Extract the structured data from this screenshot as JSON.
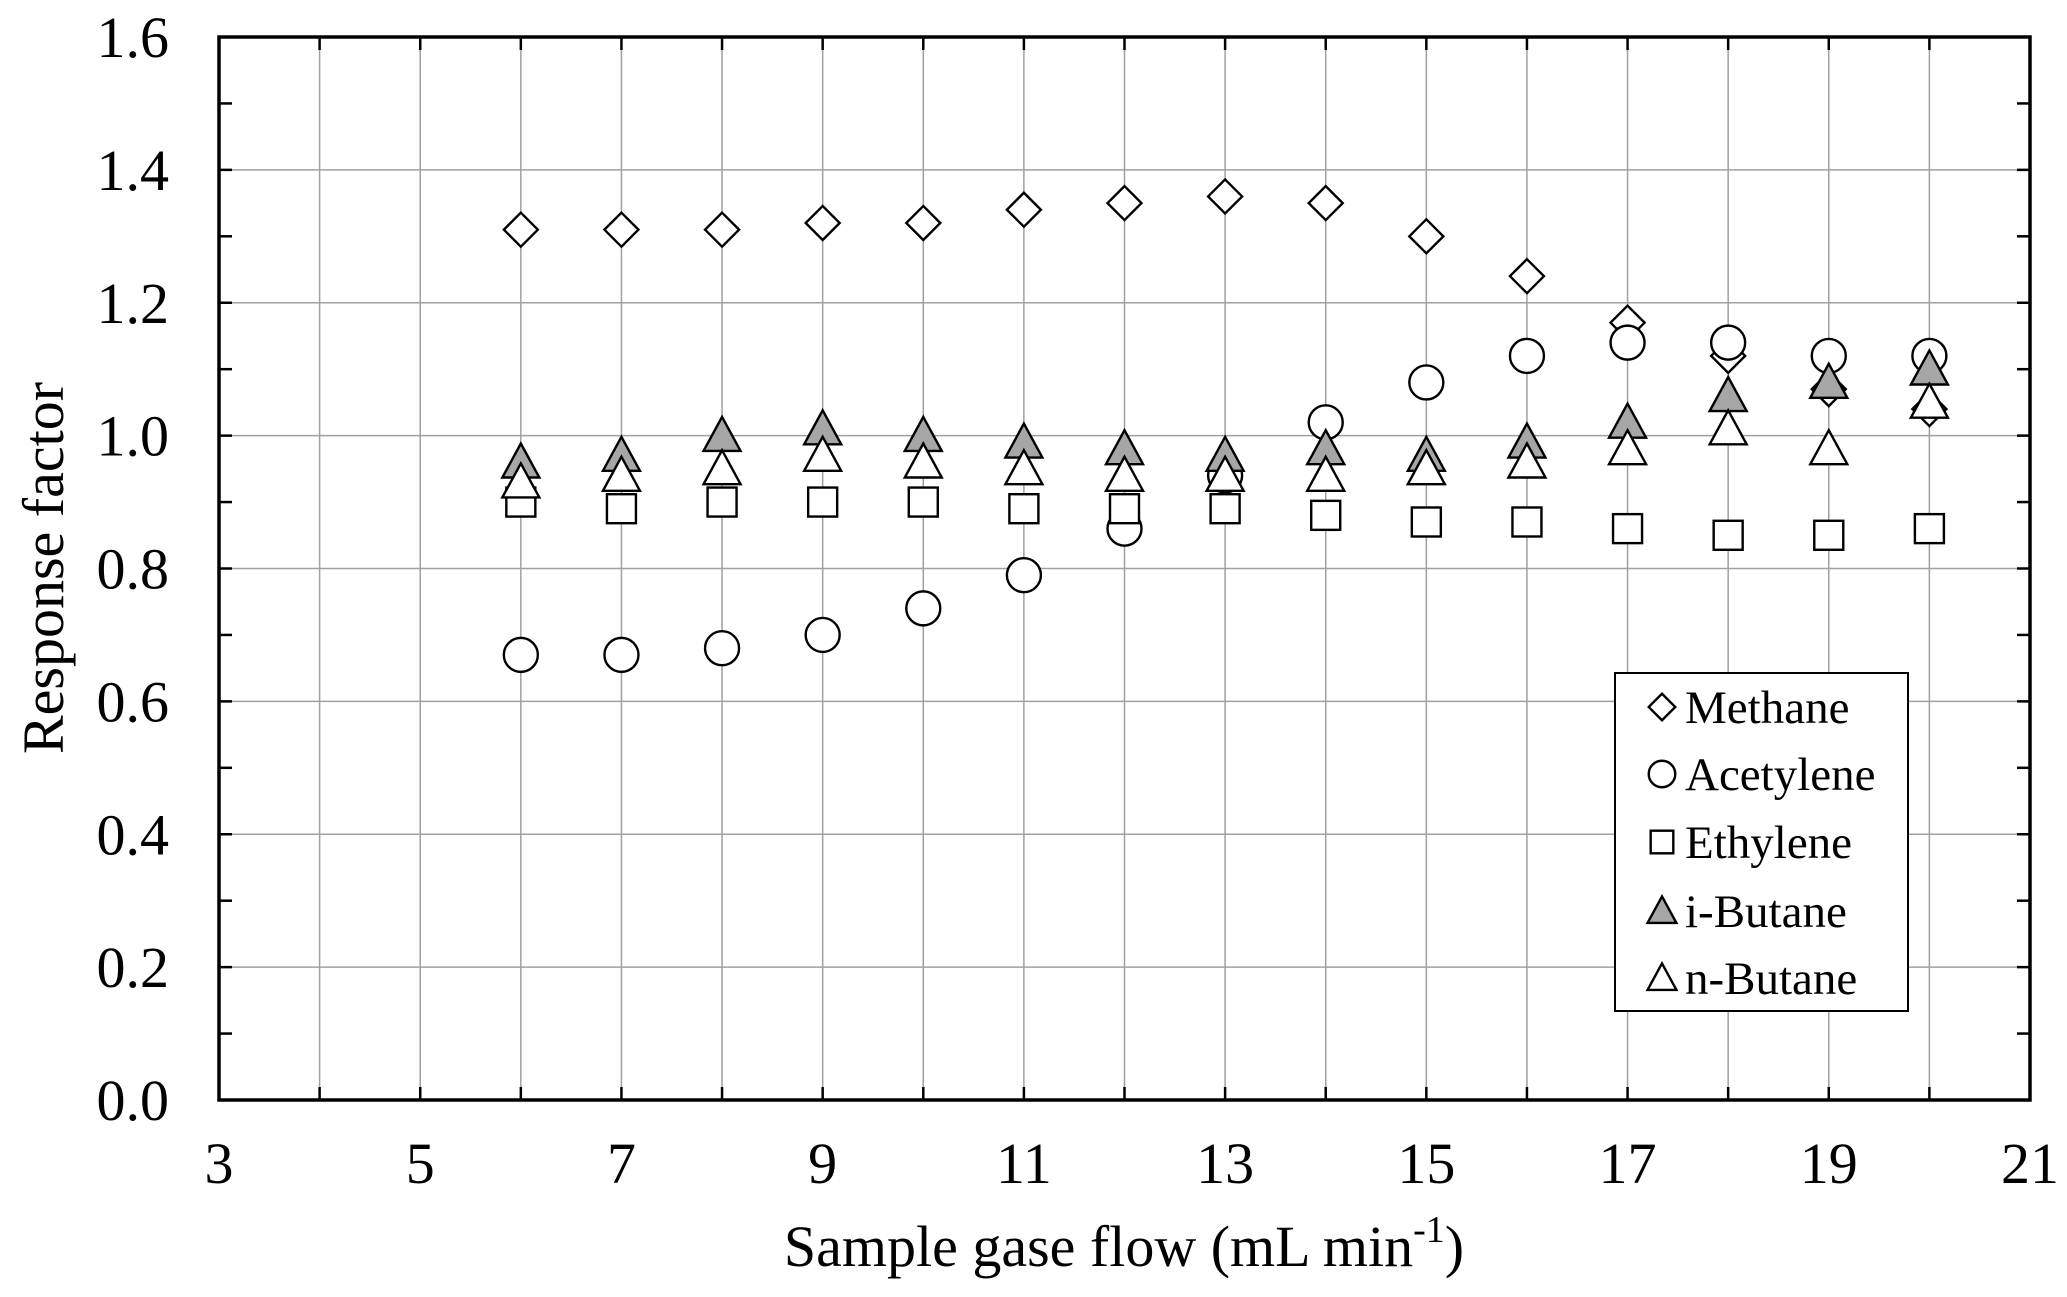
{
  "chart_data": {
    "type": "scatter",
    "title": "",
    "xlabel": {
      "text": "Sample gase flow (mL min",
      "superscript": "-1",
      "suffix": ")"
    },
    "ylabel": "Response factor",
    "xlim": [
      3,
      21
    ],
    "ylim": [
      0,
      1.6
    ],
    "xticks": [
      "3",
      "5",
      "7",
      "9",
      "11",
      "13",
      "15",
      "17",
      "19",
      "21"
    ],
    "yticks": [
      "0.0",
      "0.2",
      "0.4",
      "0.6",
      "0.8",
      "1.0",
      "1.2",
      "1.4",
      "1.6"
    ],
    "grid": true,
    "legend_position": "bottom-right",
    "x": [
      6,
      7,
      8,
      9,
      10,
      11,
      12,
      13,
      14,
      15,
      16,
      17,
      18,
      19,
      20
    ],
    "series": [
      {
        "name": "Methane",
        "marker": "diamond",
        "fill": "#ffffff",
        "values": [
          1.31,
          1.31,
          1.31,
          1.32,
          1.32,
          1.34,
          1.35,
          1.36,
          1.35,
          1.3,
          1.24,
          1.17,
          1.12,
          1.07,
          1.04
        ]
      },
      {
        "name": "Acetylene",
        "marker": "circle",
        "fill": "#ffffff",
        "values": [
          0.67,
          0.67,
          0.68,
          0.7,
          0.74,
          0.79,
          0.86,
          0.94,
          1.02,
          1.08,
          1.12,
          1.14,
          1.14,
          1.12,
          1.12
        ]
      },
      {
        "name": "Ethylene",
        "marker": "square",
        "fill": "#ffffff",
        "values": [
          0.9,
          0.89,
          0.9,
          0.9,
          0.9,
          0.89,
          0.89,
          0.89,
          0.88,
          0.87,
          0.87,
          0.86,
          0.85,
          0.85,
          0.86
        ]
      },
      {
        "name": "i-Butane",
        "marker": "triangle",
        "fill": "#a6a6a6",
        "values": [
          0.96,
          0.97,
          1.0,
          1.01,
          1.0,
          0.99,
          0.98,
          0.97,
          0.98,
          0.97,
          0.99,
          1.02,
          1.06,
          1.08,
          1.1
        ]
      },
      {
        "name": "n-Butane",
        "marker": "triangle",
        "fill": "#ffffff",
        "values": [
          0.93,
          0.94,
          0.95,
          0.97,
          0.96,
          0.95,
          0.94,
          0.94,
          0.94,
          0.95,
          0.96,
          0.98,
          1.01,
          0.98,
          1.05
        ]
      }
    ],
    "colors": {
      "stroke": "#000000",
      "grid": "#a0a0a0",
      "background": "#ffffff"
    }
  }
}
